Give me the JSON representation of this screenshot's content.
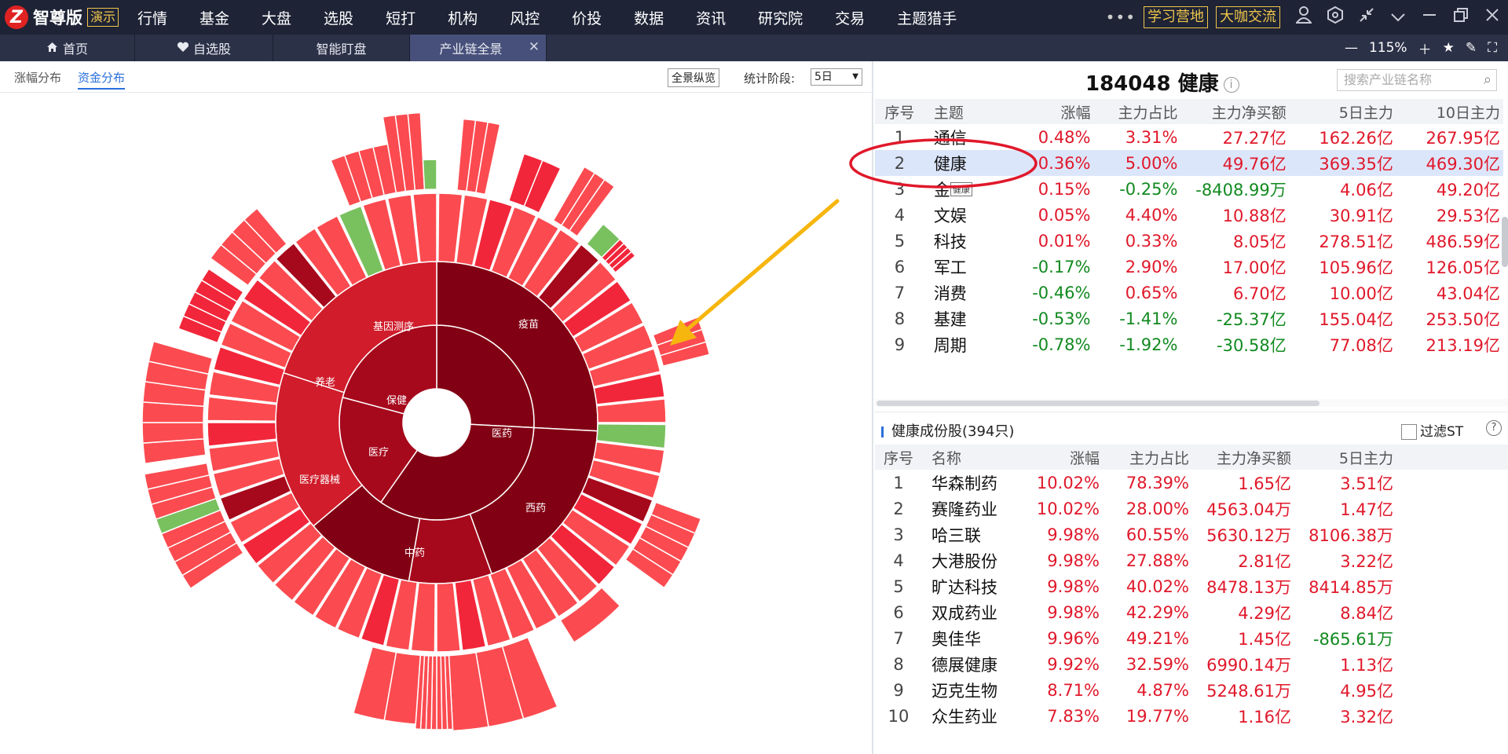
{
  "app": {
    "logo_glyph": "Z",
    "name": "智尊版",
    "badge": "演示"
  },
  "menu": [
    "行情",
    "基金",
    "大盘",
    "选股",
    "短打",
    "机构",
    "风控",
    "价投",
    "数据",
    "资讯",
    "研究院",
    "交易",
    "主题猎手"
  ],
  "topbar_right": {
    "more": "•••",
    "promo1": "学习营地",
    "promo2": "大咖交流"
  },
  "tabs": [
    {
      "label": "首页",
      "icon": "home-icon"
    },
    {
      "label": "自选股",
      "icon": "heart-icon"
    },
    {
      "label": "智能盯盘"
    },
    {
      "label": "产业链全景",
      "active": true
    }
  ],
  "zoom": {
    "value": "115%"
  },
  "left": {
    "subtabs": [
      "涨幅分布",
      "资金分布"
    ],
    "overview_button": "全景纵览",
    "period_label": "统计阶段:",
    "period_value": "5日"
  },
  "sunburst_labels": {
    "center": [
      {
        "text": "保健"
      },
      {
        "text": "医疗"
      },
      {
        "text": "医药"
      }
    ],
    "middle": [
      {
        "text": "基因测序"
      },
      {
        "text": "养老"
      },
      {
        "text": "医疗器械"
      },
      {
        "text": "中药"
      },
      {
        "text": "西药"
      },
      {
        "text": "疫苗"
      }
    ]
  },
  "colors": {
    "deep": "#820013",
    "dark": "#a6081c",
    "mid": "#d01c2b",
    "red": "#f2263a",
    "light": "#fb4b50",
    "green": "#79c15f",
    "annotation_circle": "#e0182a",
    "annotation_arrow": "#f6b60e"
  },
  "theme_panel": {
    "title": "184048 健康",
    "search_placeholder": "搜索产业链名称",
    "columns": [
      "序号",
      "主题",
      "涨幅",
      "主力占比",
      "主力净买额",
      "5日主力",
      "10日主力"
    ],
    "rows": [
      [
        "1",
        "通信",
        "0.48%",
        "3.31%",
        "27.27亿",
        "162.26亿",
        "267.95亿"
      ],
      [
        "2",
        "健康",
        "0.36%",
        "5.00%",
        "49.76亿",
        "369.35亿",
        "469.30亿"
      ],
      [
        "3",
        "金",
        "0.15%",
        "-0.25%",
        "-8408.99万",
        "4.06亿",
        "49.20亿"
      ],
      [
        "4",
        "文娱",
        "0.05%",
        "4.40%",
        "10.88亿",
        "30.91亿",
        "29.53亿"
      ],
      [
        "5",
        "科技",
        "0.01%",
        "0.33%",
        "8.05亿",
        "278.51亿",
        "486.59亿"
      ],
      [
        "6",
        "军工",
        "-0.17%",
        "2.90%",
        "17.00亿",
        "105.96亿",
        "126.05亿"
      ],
      [
        "7",
        "消费",
        "-0.46%",
        "0.65%",
        "6.70亿",
        "10.00亿",
        "43.04亿"
      ],
      [
        "8",
        "基建",
        "-0.53%",
        "-1.41%",
        "-25.37亿",
        "155.04亿",
        "253.50亿"
      ],
      [
        "9",
        "周期",
        "-0.78%",
        "-1.92%",
        "-30.58亿",
        "77.08亿",
        "213.19亿"
      ]
    ],
    "tooltip": "健康"
  },
  "stock_panel": {
    "title": "健康成份股(394只)",
    "filter_label": "过滤ST",
    "help": "?",
    "columns": [
      "序号",
      "名称",
      "涨幅",
      "主力占比",
      "主力净买额",
      "5日主力"
    ],
    "rows": [
      [
        "1",
        "华森制药",
        "10.02%",
        "78.39%",
        "1.65亿",
        "3.51亿"
      ],
      [
        "2",
        "赛隆药业",
        "10.02%",
        "28.00%",
        "4563.04万",
        "1.47亿"
      ],
      [
        "3",
        "哈三联",
        "9.98%",
        "60.55%",
        "5630.12万",
        "8106.38万"
      ],
      [
        "4",
        "大港股份",
        "9.98%",
        "27.88%",
        "2.81亿",
        "3.22亿"
      ],
      [
        "5",
        "旷达科技",
        "9.98%",
        "40.02%",
        "8478.13万",
        "8414.85万"
      ],
      [
        "6",
        "双成药业",
        "9.98%",
        "42.29%",
        "4.29亿",
        "8.84亿"
      ],
      [
        "7",
        "奥佳华",
        "9.96%",
        "49.21%",
        "1.45亿",
        "-865.61万"
      ],
      [
        "8",
        "德展健康",
        "9.92%",
        "32.59%",
        "6990.14万",
        "1.13亿"
      ],
      [
        "9",
        "迈克生物",
        "8.71%",
        "4.87%",
        "5248.61万",
        "4.95亿"
      ],
      [
        "10",
        "众生药业",
        "7.83%",
        "19.77%",
        "1.16亿",
        "3.32亿"
      ]
    ]
  }
}
